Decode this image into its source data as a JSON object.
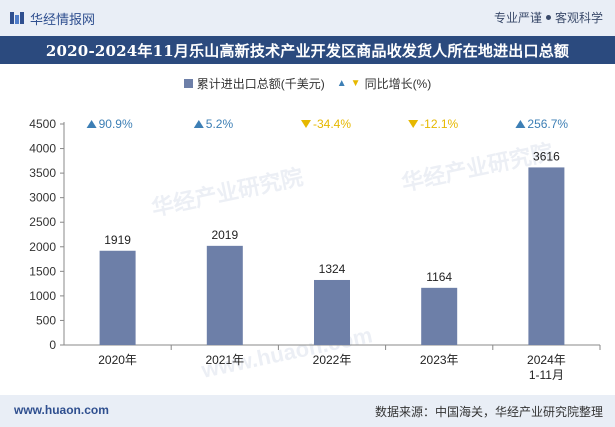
{
  "header": {
    "brand_name": "华经情报网",
    "tagline_left": "专业严谨",
    "tagline_right": "客观科学"
  },
  "footer": {
    "site": "www.huaon.com",
    "source": "数据来源：中国海关，华经产业研究院整理"
  },
  "watermarks": [
    "华经产业研究院",
    "www.huaon.com"
  ],
  "colors": {
    "bar": "#6d7fa8",
    "up": "#3d7fb5",
    "down": "#e6b800",
    "title_bg": "#2b4a7e"
  },
  "chart_data": {
    "type": "bar",
    "title": "2020-2024年11月乐山高新技术产业开发区商品收发货人所在地进出口总额",
    "categories": [
      "2020年",
      "2021年",
      "2022年",
      "2023年",
      "2024年\n1-11月"
    ],
    "series": [
      {
        "name": "累计进出口总额(千美元)",
        "values": [
          1919,
          2019,
          1324,
          1164,
          3616
        ]
      },
      {
        "name": "同比增长(%)",
        "values": [
          90.9,
          5.2,
          -34.4,
          -12.1,
          256.7
        ]
      }
    ],
    "growth_labels": [
      "90.9%",
      "5.2%",
      "-34.4%",
      "-12.1%",
      "256.7%"
    ],
    "yticks": [
      0,
      500,
      1000,
      1500,
      2000,
      2500,
      3000,
      3500,
      4000,
      4500
    ],
    "ylim": [
      0,
      4500
    ],
    "xlabel": "",
    "ylabel": "",
    "grid": false,
    "legend": "top-center"
  }
}
